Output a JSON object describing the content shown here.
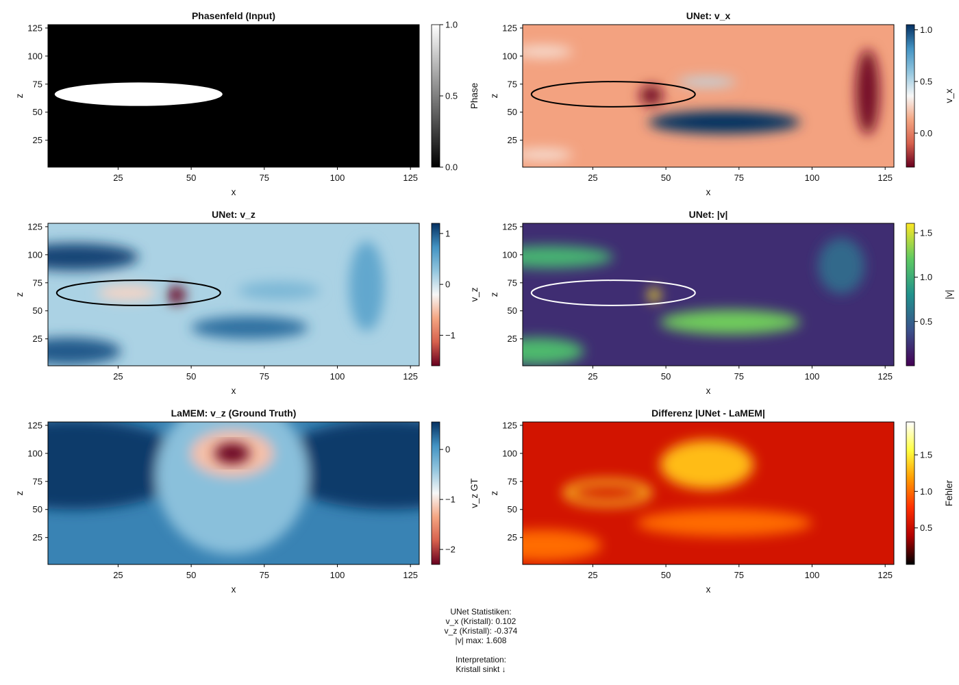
{
  "panels": [
    {
      "id": "phase",
      "title": "Phasenfeld (Input)",
      "xlabel": "x",
      "ylabel": "z",
      "x_ticks": [
        25,
        50,
        75,
        100,
        125
      ],
      "y_ticks": [
        25,
        50,
        75,
        100,
        125
      ],
      "colormap": "greys",
      "colorbar": {
        "label": "Phase",
        "min": 0.0,
        "max": 1.0,
        "ticks": [
          "0.0",
          "0.5",
          "1.0"
        ],
        "tick_values": [
          0.0,
          0.5,
          1.0
        ]
      }
    },
    {
      "id": "vx",
      "title": "UNet: v_x",
      "xlabel": "x",
      "ylabel": "z",
      "x_ticks": [
        25,
        50,
        75,
        100,
        125
      ],
      "y_ticks": [
        25,
        50,
        75,
        100,
        125
      ],
      "colormap": "RdBu",
      "colorbar": {
        "label": "v_x",
        "min": -0.33,
        "max": 1.05,
        "ticks": [
          "0.0",
          "0.5",
          "1.0"
        ],
        "tick_values": [
          0.0,
          0.5,
          1.0
        ]
      }
    },
    {
      "id": "vz",
      "title": "UNet: v_z",
      "xlabel": "x",
      "ylabel": "z",
      "x_ticks": [
        25,
        50,
        75,
        100,
        125
      ],
      "y_ticks": [
        25,
        50,
        75,
        100,
        125
      ],
      "colormap": "RdBu",
      "colorbar": {
        "label": "v_z",
        "min": -1.6,
        "max": 1.2,
        "ticks": [
          "−1",
          "0",
          "1"
        ],
        "tick_values": [
          -1,
          0,
          1
        ]
      }
    },
    {
      "id": "vmag",
      "title": "UNet: |v|",
      "xlabel": "x",
      "ylabel": "z",
      "x_ticks": [
        25,
        50,
        75,
        100,
        125
      ],
      "y_ticks": [
        25,
        50,
        75,
        100,
        125
      ],
      "colormap": "viridis",
      "colorbar": {
        "label": "|v|",
        "min": 0.0,
        "max": 1.608,
        "ticks": [
          "0.5",
          "1.0",
          "1.5"
        ],
        "tick_values": [
          0.5,
          1.0,
          1.5
        ]
      }
    },
    {
      "id": "vzgt",
      "title": "LaMEM: v_z (Ground Truth)",
      "xlabel": "x",
      "ylabel": "z",
      "x_ticks": [
        25,
        50,
        75,
        100,
        125
      ],
      "y_ticks": [
        25,
        50,
        75,
        100,
        125
      ],
      "colormap": "RdBu",
      "colorbar": {
        "label": "v_z GT",
        "min": -2.3,
        "max": 0.55,
        "ticks": [
          "−2",
          "−1",
          "0"
        ],
        "tick_values": [
          -2,
          -1,
          0
        ]
      }
    },
    {
      "id": "diff",
      "title": "Differenz |UNet - LaMEM|",
      "xlabel": "x",
      "ylabel": "z",
      "x_ticks": [
        25,
        50,
        75,
        100,
        125
      ],
      "y_ticks": [
        25,
        50,
        75,
        100,
        125
      ],
      "colormap": "hot",
      "colorbar": {
        "label": "Fehler",
        "min": 0.0,
        "max": 1.95,
        "ticks": [
          "0.5",
          "1.0",
          "1.5"
        ],
        "tick_values": [
          0.5,
          1.0,
          1.5
        ]
      }
    }
  ],
  "stats": {
    "lines": [
      "UNet Statistiken:",
      "v_x (Kristall): 0.102",
      "v_z (Kristall): -0.374",
      "|v| max: 1.608",
      "",
      "Interpretation:",
      "Kristall sinkt ↓"
    ]
  },
  "chart_data": [
    {
      "type": "heatmap",
      "title": "Phasenfeld (Input)",
      "xlabel": "x",
      "ylabel": "z",
      "xlim": [
        1,
        128
      ],
      "ylim": [
        1,
        128
      ],
      "colorbar_label": "Phase",
      "clim": [
        0.0,
        1.0
      ],
      "features": [
        {
          "kind": "ellipse",
          "center_x": 32,
          "center_z": 66,
          "radius_x": 14,
          "radius_z": 11,
          "value": 1.0
        }
      ],
      "background_value": 0.0
    },
    {
      "type": "heatmap",
      "title": "UNet: v_x",
      "xlabel": "x",
      "ylabel": "z",
      "xlim": [
        1,
        128
      ],
      "ylim": [
        1,
        128
      ],
      "colorbar_label": "v_x",
      "clim": [
        -0.33,
        1.05
      ],
      "background_value": 0.12,
      "features": [
        {
          "center_x": 70,
          "center_z": 41,
          "radius_x": 26,
          "radius_z": 10,
          "value": 1.05
        },
        {
          "center_x": 64,
          "center_z": 77,
          "radius_x": 10,
          "radius_z": 4,
          "value": 0.5
        },
        {
          "center_x": 119,
          "center_z": 68,
          "radius_x": 4,
          "radius_z": 38,
          "value": -0.3
        },
        {
          "center_x": 45,
          "center_z": 65,
          "radius_x": 4,
          "radius_z": 9,
          "value": -0.3
        },
        {
          "center_x": 8,
          "center_z": 104,
          "radius_x": 10,
          "radius_z": 5,
          "value": 0.3
        },
        {
          "center_x": 8,
          "center_z": 12,
          "radius_x": 10,
          "radius_z": 5,
          "value": 0.3
        }
      ],
      "crystal_outline": true
    },
    {
      "type": "heatmap",
      "title": "UNet: v_z",
      "xlabel": "x",
      "ylabel": "z",
      "xlim": [
        1,
        128
      ],
      "ylim": [
        1,
        128
      ],
      "colorbar_label": "v_z",
      "clim": [
        -1.6,
        1.2
      ],
      "background_value": 0.15,
      "features": [
        {
          "center_x": 10,
          "center_z": 98,
          "radius_x": 22,
          "radius_z": 12,
          "value": 1.1
        },
        {
          "center_x": 8,
          "center_z": 14,
          "radius_x": 18,
          "radius_z": 12,
          "value": 1.0
        },
        {
          "center_x": 70,
          "center_z": 35,
          "radius_x": 20,
          "radius_z": 10,
          "value": 0.9
        },
        {
          "center_x": 110,
          "center_z": 72,
          "radius_x": 6,
          "radius_z": 40,
          "value": 0.55
        },
        {
          "center_x": 80,
          "center_z": 68,
          "radius_x": 14,
          "radius_z": 8,
          "value": 0.4
        },
        {
          "center_x": 45,
          "center_z": 64,
          "radius_x": 3,
          "radius_z": 8,
          "value": -1.6
        },
        {
          "center_x": 28,
          "center_z": 66,
          "radius_x": 10,
          "radius_z": 7,
          "value": -0.4
        }
      ],
      "crystal_outline": true
    },
    {
      "type": "heatmap",
      "title": "UNet: |v|",
      "xlabel": "x",
      "ylabel": "z",
      "xlim": [
        1,
        128
      ],
      "ylim": [
        1,
        128
      ],
      "colorbar_label": "|v|",
      "clim": [
        0.0,
        1.608
      ],
      "background_value": 0.22,
      "max_value": 1.608,
      "features": [
        {
          "center_x": 10,
          "center_z": 98,
          "radius_x": 22,
          "radius_z": 10,
          "value": 1.05
        },
        {
          "center_x": 6,
          "center_z": 14,
          "radius_x": 16,
          "radius_z": 12,
          "value": 1.1
        },
        {
          "center_x": 72,
          "center_z": 40,
          "radius_x": 24,
          "radius_z": 11,
          "value": 1.25
        },
        {
          "center_x": 110,
          "center_z": 90,
          "radius_x": 8,
          "radius_z": 25,
          "value": 0.55
        },
        {
          "center_x": 46,
          "center_z": 64,
          "radius_x": 2,
          "radius_z": 6,
          "value": 1.608
        }
      ],
      "crystal_outline": true
    },
    {
      "type": "heatmap",
      "title": "LaMEM: v_z (Ground Truth)",
      "xlabel": "x",
      "ylabel": "z",
      "xlim": [
        1,
        128
      ],
      "ylim": [
        1,
        128
      ],
      "colorbar_label": "v_z GT",
      "clim": [
        -2.3,
        0.55
      ],
      "features": [
        {
          "kind": "sinking_crystal",
          "center_x": 64,
          "center_z": 100,
          "value": -2.3
        }
      ],
      "far_field_value": 0.45
    },
    {
      "type": "heatmap",
      "title": "Differenz |UNet - LaMEM|",
      "xlabel": "x",
      "ylabel": "z",
      "xlim": [
        1,
        128
      ],
      "ylim": [
        1,
        128
      ],
      "colorbar_label": "Fehler",
      "clim": [
        0.0,
        1.95
      ],
      "background_value": 0.55,
      "features": [
        {
          "center_x": 64,
          "center_z": 100,
          "radius_x": 8,
          "radius_z": 7,
          "value": 1.95
        },
        {
          "center_x": 64,
          "center_z": 90,
          "radius_x": 16,
          "radius_z": 22,
          "value": 1.3
        },
        {
          "center_x": 70,
          "center_z": 38,
          "radius_x": 30,
          "radius_z": 12,
          "value": 1.0
        },
        {
          "center_x": 8,
          "center_z": 18,
          "radius_x": 20,
          "radius_z": 14,
          "value": 1.0
        },
        {
          "center_x": 30,
          "center_z": 65,
          "radius_x": 14,
          "radius_z": 9,
          "value": 1.4,
          "ring": true
        }
      ]
    }
  ]
}
